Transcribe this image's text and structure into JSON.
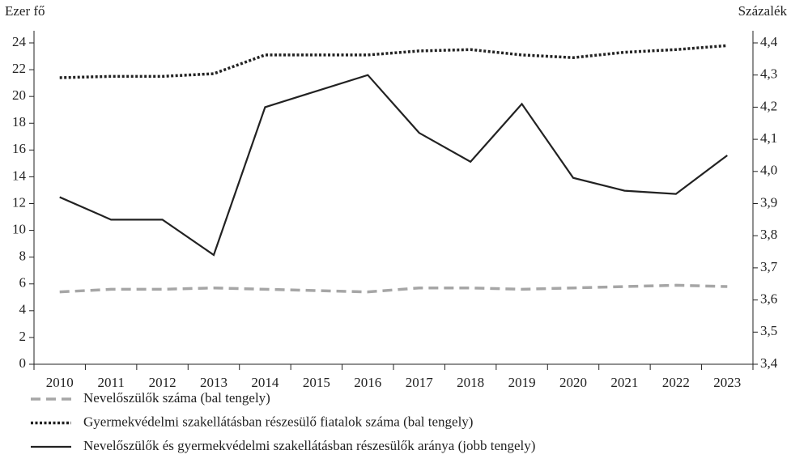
{
  "chart_data": {
    "type": "line",
    "y_label": "Ezer fő",
    "y2_label": "Százalék",
    "categories": [
      "2010",
      "2011",
      "2012",
      "2013",
      "2014",
      "2015",
      "2016",
      "2017",
      "2018",
      "2019",
      "2020",
      "2021",
      "2022",
      "2023"
    ],
    "series": [
      {
        "name": "Nevelőszülők száma (bal tengely)",
        "color": "#a6a6a6",
        "dash": "dashed",
        "values": [
          5.4,
          5.6,
          5.6,
          5.7,
          5.6,
          5.5,
          5.4,
          5.7,
          5.7,
          5.6,
          5.7,
          5.8,
          5.9,
          5.8
        ]
      },
      {
        "name": "Gyermekvédelmi szakellátásban részesülő fiatalok száma (bal tengely)",
        "color": "#222222",
        "dash": "dotted",
        "values": [
          21.4,
          21.5,
          21.5,
          21.7,
          23.1,
          23.1,
          23.1,
          23.4,
          23.5,
          23.1,
          22.9,
          23.3,
          23.5,
          23.8
        ]
      },
      {
        "name": "Nevelőszülők és gyermekvédelmi szakellátásban részesülők aránya (jobb tengely)",
        "color": "#222222",
        "dash": "solid",
        "axis": "y2",
        "values": [
          3.92,
          3.85,
          3.85,
          3.74,
          4.2,
          4.25,
          4.3,
          4.12,
          4.03,
          4.21,
          3.98,
          3.94,
          3.93,
          4.05
        ]
      }
    ],
    "ylim": [
      0,
      24
    ],
    "yticks": [
      0,
      2,
      4,
      6,
      8,
      10,
      12,
      14,
      16,
      18,
      20,
      22,
      24
    ],
    "y2lim": [
      3.4,
      4.4
    ],
    "y2ticks": [
      {
        "value": 3.4,
        "label": "3,4"
      },
      {
        "value": 3.5,
        "label": "3,5"
      },
      {
        "value": 3.6,
        "label": "3,6"
      },
      {
        "value": 3.7,
        "label": "3,7"
      },
      {
        "value": 3.8,
        "label": "3,8"
      },
      {
        "value": 3.9,
        "label": "3,9"
      },
      {
        "value": 4.0,
        "label": "4,0"
      },
      {
        "value": 4.1,
        "label": "4,1"
      },
      {
        "value": 4.2,
        "label": "4,2"
      },
      {
        "value": 4.3,
        "label": "4,3"
      },
      {
        "value": 4.4,
        "label": "4,4"
      }
    ],
    "grid": false
  }
}
